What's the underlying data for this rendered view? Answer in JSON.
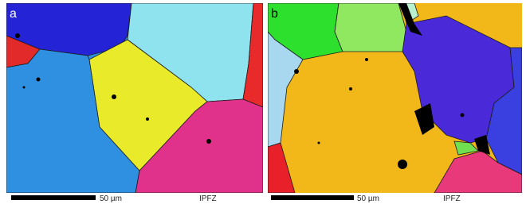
{
  "panels": [
    {
      "label": "a",
      "scale_bar": "50 µm",
      "map_label": "IPFZ"
    },
    {
      "label": "b",
      "scale_bar": "50 µm",
      "map_label": "IPFZ"
    }
  ]
}
